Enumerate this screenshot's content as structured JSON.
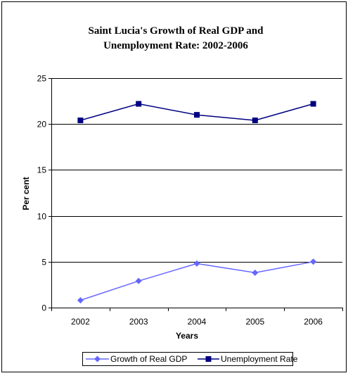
{
  "chart_data": {
    "type": "line",
    "title_lines": [
      "Saint Lucia's Growth of Real GDP and",
      "Unemployment Rate: 2002-2006"
    ],
    "xlabel": "Years",
    "ylabel": "Per cent",
    "categories": [
      "2002",
      "2003",
      "2004",
      "2005",
      "2006"
    ],
    "ylim": [
      0,
      25
    ],
    "yticks": [
      "0",
      "5",
      "10",
      "15",
      "20",
      "25"
    ],
    "grid": true,
    "legend_position": "bottom",
    "series": [
      {
        "name": "Growth of Real GDP",
        "values": [
          0.8,
          2.9,
          4.8,
          3.8,
          5.0
        ],
        "color": "#6666ff",
        "marker": "diamond"
      },
      {
        "name": "Unemployment Rate",
        "values": [
          20.4,
          22.2,
          21.0,
          20.4,
          22.2
        ],
        "color": "#000080",
        "marker": "square"
      }
    ]
  }
}
